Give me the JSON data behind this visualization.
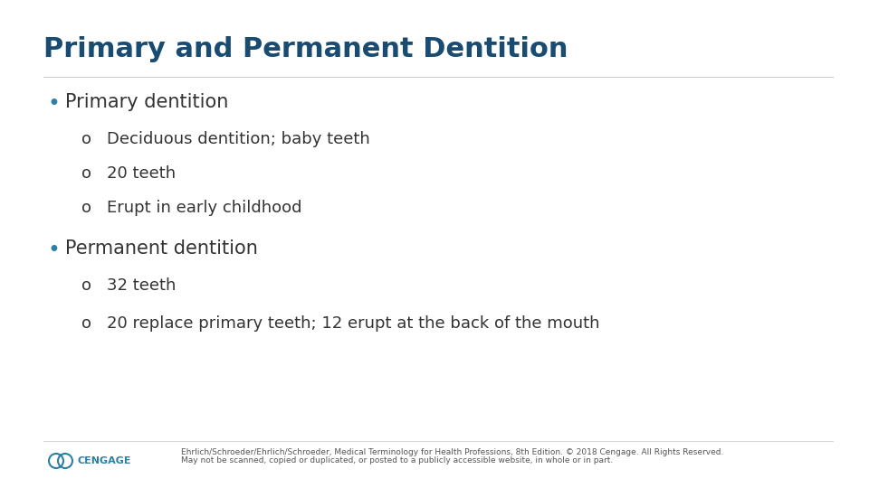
{
  "title": "Primary and Permanent Dentition",
  "title_color": "#1a4c72",
  "title_fontsize": 22,
  "background_color": "#ffffff",
  "bullet_color": "#2e7fa5",
  "text_color": "#333333",
  "bullet1": "Primary dentition",
  "sub1_1": "Deciduous dentition; baby teeth",
  "sub1_2": "20 teeth",
  "sub1_3": "Erupt in early childhood",
  "bullet2": "Permanent dentition",
  "sub2_1": "32 teeth",
  "sub2_2": "20 replace primary teeth; 12 erupt at the back of the mouth",
  "footer_line1": "Ehrlich/Schroeder/Ehrlich/Schroeder, Medical Terminology for Health Professions, 8th Edition. © 2018 Cengage. All Rights Reserved.",
  "footer_line2": "May not be scanned, copied or duplicated, or posted to a publicly accessible website, in whole or in part.",
  "footer_fontsize": 6.5,
  "cengage_text": "CENGAGE",
  "bullet_main_fontsize": 15,
  "bullet_sub_fontsize": 13
}
